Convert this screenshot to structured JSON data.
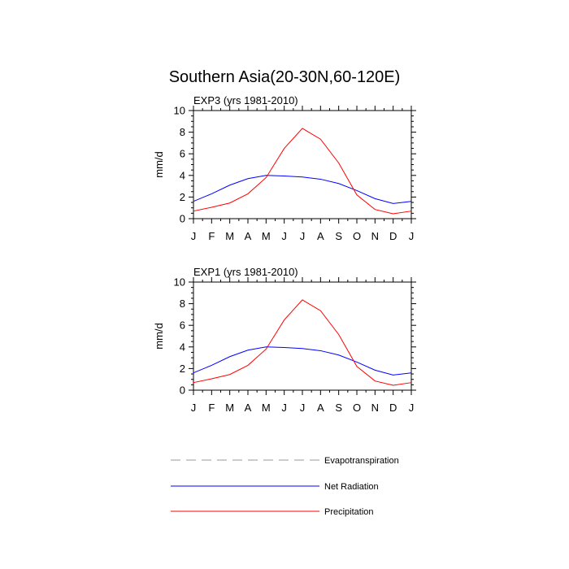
{
  "chart_data": {
    "title": "Southern Asia(20-30N,60-120E)",
    "type": "line",
    "categories": [
      "J",
      "F",
      "M",
      "A",
      "M",
      "J",
      "J",
      "A",
      "S",
      "O",
      "N",
      "D",
      "J"
    ],
    "ylabel": "mm/d",
    "ylim": [
      0,
      10
    ],
    "yticks": [
      "0",
      "2",
      "4",
      "6",
      "8",
      "10"
    ],
    "colors": {
      "evapotranspiration": "#999999",
      "net_radiation": "#0000ff",
      "precipitation": "#ff0000"
    },
    "panels": [
      {
        "title": "EXP3 (yrs 1981-2010)",
        "series": [
          {
            "name": "Net Radiation",
            "values": [
              1.6,
              2.3,
              3.1,
              3.7,
              4.0,
              3.95,
              3.85,
              3.65,
              3.25,
              2.6,
              1.85,
              1.4,
              1.6
            ]
          },
          {
            "name": "Precipitation",
            "values": [
              0.7,
              1.05,
              1.45,
              2.3,
              3.8,
              6.5,
              8.35,
              7.35,
              5.15,
              2.2,
              0.85,
              0.45,
              0.7
            ]
          }
        ]
      },
      {
        "title": "EXP1 (yrs 1981-2010)",
        "series": [
          {
            "name": "Net Radiation",
            "values": [
              1.6,
              2.3,
              3.1,
              3.7,
              4.0,
              3.95,
              3.85,
              3.65,
              3.25,
              2.6,
              1.85,
              1.4,
              1.6
            ]
          },
          {
            "name": "Precipitation",
            "values": [
              0.7,
              1.05,
              1.45,
              2.3,
              3.8,
              6.5,
              8.35,
              7.35,
              5.15,
              2.2,
              0.85,
              0.45,
              0.7
            ]
          }
        ]
      }
    ],
    "legend": [
      {
        "key": "evapotranspiration",
        "label": "Evapotranspiration",
        "style": "dashed"
      },
      {
        "key": "net_radiation",
        "label": "Net Radiation",
        "style": "solid"
      },
      {
        "key": "precipitation",
        "label": "Precipitation",
        "style": "solid"
      }
    ]
  }
}
